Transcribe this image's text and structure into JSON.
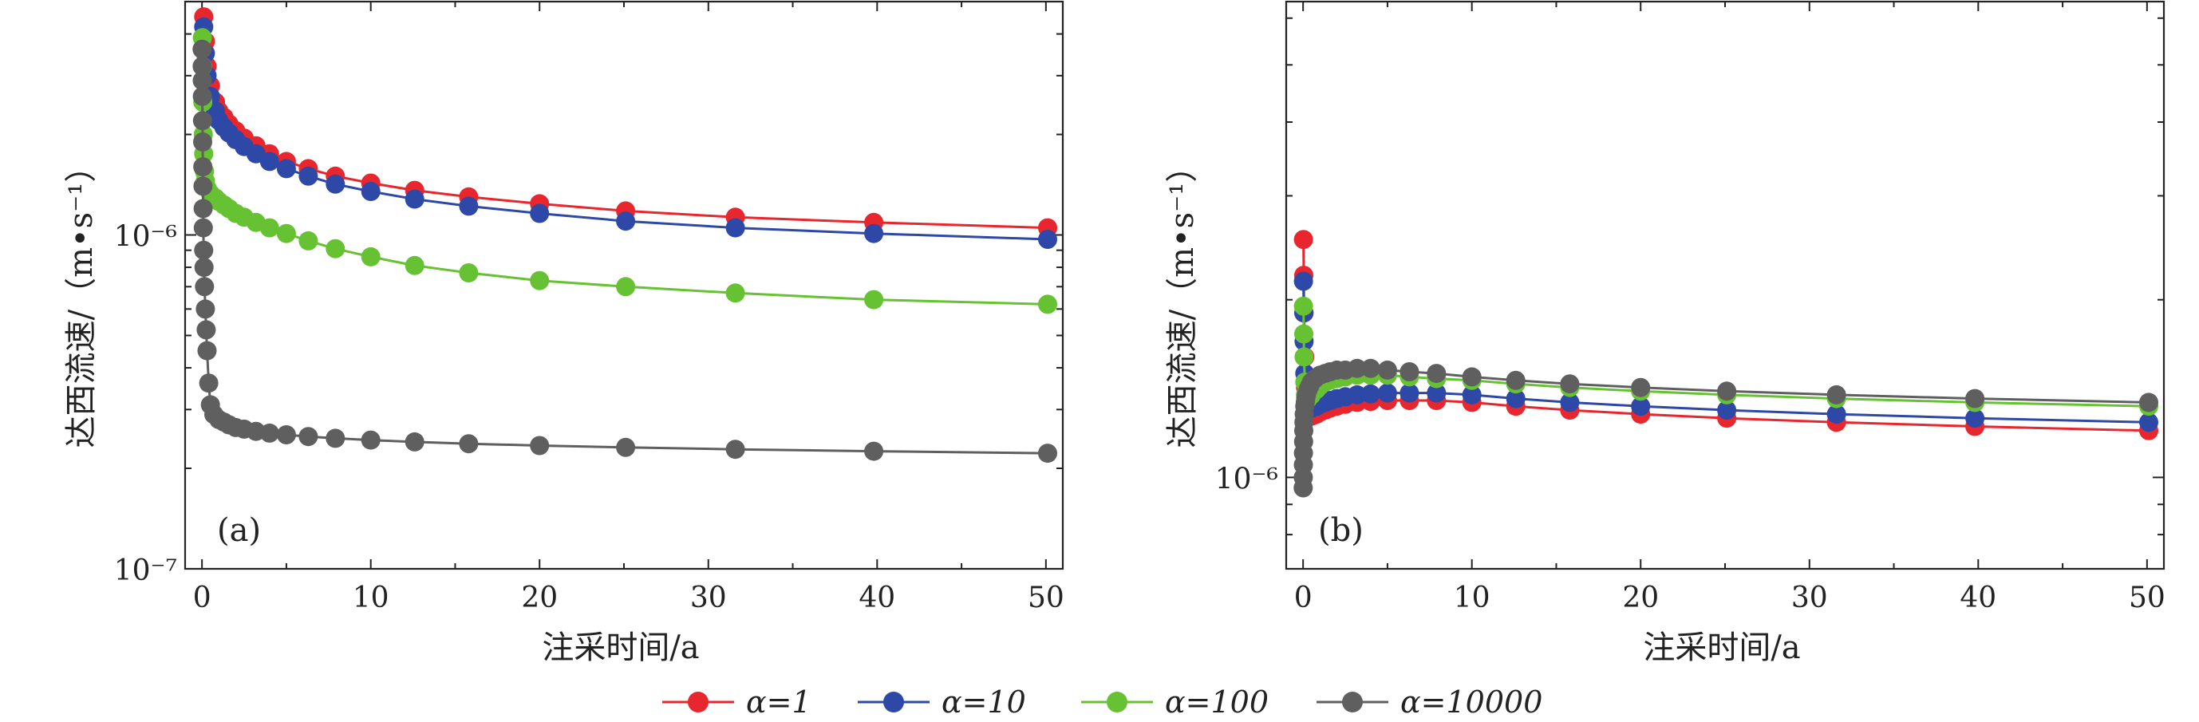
{
  "figure": {
    "legend": [
      {
        "label": "α=1",
        "color": "#e8262d"
      },
      {
        "label": "α=10",
        "color": "#2e48a8"
      },
      {
        "label": "α=100",
        "color": "#66c232"
      },
      {
        "label": "α=10000",
        "color": "#5f5f5f"
      }
    ]
  },
  "chart_data": [
    {
      "type": "line",
      "panel_label": "(a)",
      "xlabel": "注采时间/a",
      "ylabel": "达西流速/（m•s⁻¹）",
      "xlim": [
        -1,
        51
      ],
      "ylim": [
        1e-07,
        5e-06
      ],
      "yscale": "log",
      "xticks": [
        "0",
        "10",
        "20",
        "30",
        "40",
        "50"
      ],
      "yticks": [
        {
          "value": 1e-06,
          "label": "10⁻⁶"
        },
        {
          "value": 1e-07,
          "label": "10⁻⁷"
        }
      ],
      "series": [
        {
          "name": "α=1",
          "color": "#e8262d",
          "x": [
            0.1,
            0.2,
            0.3,
            0.5,
            0.8,
            1.0,
            1.3,
            1.6,
            2.0,
            2.5,
            3.2,
            4.0,
            5.0,
            6.3,
            7.9,
            10.0,
            12.6,
            15.8,
            20.0,
            25.1,
            31.6,
            39.8,
            50.1
          ],
          "y": [
            4.5e-06,
            3.8e-06,
            3.2e-06,
            2.8e-06,
            2.5e-06,
            2.35e-06,
            2.25e-06,
            2.15e-06,
            2.05e-06,
            1.95e-06,
            1.85e-06,
            1.75e-06,
            1.66e-06,
            1.58e-06,
            1.5e-06,
            1.43e-06,
            1.36e-06,
            1.3e-06,
            1.24e-06,
            1.18e-06,
            1.13e-06,
            1.09e-06,
            1.05e-06
          ]
        },
        {
          "name": "α=10",
          "color": "#2e48a8",
          "x": [
            0.1,
            0.2,
            0.3,
            0.5,
            0.8,
            1.0,
            1.3,
            1.6,
            2.0,
            2.5,
            3.2,
            4.0,
            5.0,
            6.3,
            7.9,
            10.0,
            12.6,
            15.8,
            20.0,
            25.1,
            31.6,
            39.8,
            50.1
          ],
          "y": [
            4.2e-06,
            3.5e-06,
            3e-06,
            2.6e-06,
            2.35e-06,
            2.2e-06,
            2.1e-06,
            2.02e-06,
            1.93e-06,
            1.84e-06,
            1.75e-06,
            1.66e-06,
            1.58e-06,
            1.5e-06,
            1.42e-06,
            1.35e-06,
            1.28e-06,
            1.22e-06,
            1.16e-06,
            1.1e-06,
            1.05e-06,
            1.01e-06,
            9.7e-07
          ]
        },
        {
          "name": "α=100",
          "color": "#66c232",
          "x": [
            0.02,
            0.03,
            0.05,
            0.08,
            0.1,
            0.15,
            0.2,
            0.3,
            0.5,
            0.8,
            1.0,
            1.3,
            1.6,
            2.0,
            2.5,
            3.2,
            4.0,
            5.0,
            6.3,
            7.9,
            10.0,
            12.6,
            15.8,
            20.0,
            25.1,
            31.6,
            39.8,
            50.1
          ],
          "y": [
            3.9e-06,
            3.2e-06,
            2.5e-06,
            2e-06,
            1.75e-06,
            1.55e-06,
            1.45e-06,
            1.38e-06,
            1.33e-06,
            1.29e-06,
            1.26e-06,
            1.23e-06,
            1.2e-06,
            1.16e-06,
            1.13e-06,
            1.09e-06,
            1.05e-06,
            1.01e-06,
            9.6e-07,
            9.1e-07,
            8.6e-07,
            8.1e-07,
            7.7e-07,
            7.3e-07,
            7e-07,
            6.7e-07,
            6.4e-07,
            6.2e-07
          ]
        },
        {
          "name": "α=10000",
          "color": "#5f5f5f",
          "x": [
            0.005,
            0.01,
            0.015,
            0.02,
            0.03,
            0.04,
            0.05,
            0.06,
            0.07,
            0.08,
            0.1,
            0.12,
            0.15,
            0.2,
            0.25,
            0.3,
            0.4,
            0.5,
            0.7,
            1.0,
            1.3,
            1.6,
            2.0,
            2.5,
            3.2,
            4.0,
            5.0,
            6.3,
            7.9,
            10.0,
            12.6,
            15.8,
            20.0,
            25.1,
            31.6,
            39.8,
            50.1
          ],
          "y": [
            3.6e-06,
            3.2e-06,
            2.9e-06,
            2.6e-06,
            2.2e-06,
            1.9e-06,
            1.6e-06,
            1.4e-06,
            1.2e-06,
            1.05e-06,
            9e-07,
            8e-07,
            7e-07,
            6e-07,
            5.2e-07,
            4.5e-07,
            3.6e-07,
            3.1e-07,
            2.9e-07,
            2.8e-07,
            2.75e-07,
            2.7e-07,
            2.65e-07,
            2.62e-07,
            2.58e-07,
            2.55e-07,
            2.52e-07,
            2.49e-07,
            2.46e-07,
            2.43e-07,
            2.4e-07,
            2.37e-07,
            2.34e-07,
            2.31e-07,
            2.28e-07,
            2.25e-07,
            2.22e-07
          ]
        }
      ]
    },
    {
      "type": "line",
      "panel_label": "(b)",
      "xlabel": "注采时间/a",
      "ylabel": "达西流速/（m•s⁻¹）",
      "xlim": [
        -1,
        51
      ],
      "ylim": [
        7e-07,
        6.4e-06
      ],
      "yscale": "log",
      "xticks": [
        "0",
        "10",
        "20",
        "30",
        "40",
        "50"
      ],
      "yticks": [
        {
          "value": 1e-06,
          "label": "10⁻⁶"
        }
      ],
      "series": [
        {
          "name": "α=1",
          "color": "#e8262d",
          "x": [
            0.02,
            0.04,
            0.06,
            0.1,
            0.15,
            0.2,
            0.3,
            0.5,
            0.8,
            1.0,
            1.3,
            1.6,
            2.0,
            2.5,
            3.2,
            4.0,
            5.0,
            6.3,
            7.9,
            10.0,
            12.6,
            15.8,
            20.0,
            25.1,
            31.6,
            39.8,
            50.1
          ],
          "y": [
            2.53e-06,
            2.2e-06,
            1.9e-06,
            1.6e-06,
            1.42e-06,
            1.33e-06,
            1.28e-06,
            1.27e-06,
            1.28e-06,
            1.29e-06,
            1.3e-06,
            1.31e-06,
            1.32e-06,
            1.33e-06,
            1.34e-06,
            1.345e-06,
            1.35e-06,
            1.35e-06,
            1.35e-06,
            1.34e-06,
            1.32e-06,
            1.3e-06,
            1.28e-06,
            1.26e-06,
            1.24e-06,
            1.22e-06,
            1.2e-06
          ]
        },
        {
          "name": "α=10",
          "color": "#2e48a8",
          "x": [
            0.02,
            0.04,
            0.06,
            0.1,
            0.15,
            0.2,
            0.3,
            0.5,
            0.8,
            1.0,
            1.3,
            1.6,
            2.0,
            2.5,
            3.2,
            4.0,
            5.0,
            6.3,
            7.9,
            10.0,
            12.6,
            15.8,
            20.0,
            25.1,
            31.6,
            39.8,
            50.1
          ],
          "y": [
            2.15e-06,
            1.9e-06,
            1.7e-06,
            1.5e-06,
            1.38e-06,
            1.33e-06,
            1.31e-06,
            1.31e-06,
            1.32e-06,
            1.33e-06,
            1.34e-06,
            1.35e-06,
            1.36e-06,
            1.37e-06,
            1.38e-06,
            1.385e-06,
            1.39e-06,
            1.39e-06,
            1.39e-06,
            1.38e-06,
            1.36e-06,
            1.34e-06,
            1.32e-06,
            1.3e-06,
            1.28e-06,
            1.26e-06,
            1.24e-06
          ]
        },
        {
          "name": "α=100",
          "color": "#66c232",
          "x": [
            0.02,
            0.04,
            0.06,
            0.1,
            0.15,
            0.2,
            0.3,
            0.5,
            0.8,
            1.0,
            1.3,
            1.6,
            2.0,
            2.5,
            3.2,
            4.0,
            5.0,
            6.3,
            7.9,
            10.0,
            12.6,
            15.8,
            20.0,
            25.1,
            31.6,
            39.8,
            50.1
          ],
          "y": [
            1.95e-06,
            1.75e-06,
            1.6e-06,
            1.45e-06,
            1.38e-06,
            1.36e-06,
            1.36e-06,
            1.38e-06,
            1.41e-06,
            1.43e-06,
            1.45e-06,
            1.46e-06,
            1.47e-06,
            1.48e-06,
            1.49e-06,
            1.49e-06,
            1.49e-06,
            1.48e-06,
            1.47e-06,
            1.46e-06,
            1.44e-06,
            1.42e-06,
            1.4e-06,
            1.38e-06,
            1.36e-06,
            1.34e-06,
            1.32e-06
          ]
        },
        {
          "name": "α=10000",
          "color": "#5f5f5f",
          "x": [
            0.005,
            0.01,
            0.015,
            0.02,
            0.03,
            0.04,
            0.05,
            0.07,
            0.1,
            0.13,
            0.16,
            0.2,
            0.3,
            0.4,
            0.5,
            0.7,
            1.0,
            1.3,
            1.6,
            2.0,
            2.5,
            3.2,
            4.0,
            5.0,
            6.3,
            7.9,
            10.0,
            12.6,
            15.8,
            20.0,
            25.1,
            31.6,
            39.8,
            50.1
          ],
          "y": [
            9.6e-07,
            1e-06,
            1.05e-06,
            1.1e-06,
            1.15e-06,
            1.2e-06,
            1.24e-06,
            1.28e-06,
            1.32e-06,
            1.34e-06,
            1.36e-06,
            1.38e-06,
            1.41e-06,
            1.43e-06,
            1.45e-06,
            1.47e-06,
            1.49e-06,
            1.5e-06,
            1.51e-06,
            1.52e-06,
            1.52e-06,
            1.53e-06,
            1.53e-06,
            1.52e-06,
            1.51e-06,
            1.5e-06,
            1.48e-06,
            1.46e-06,
            1.44e-06,
            1.42e-06,
            1.4e-06,
            1.38e-06,
            1.36e-06,
            1.34e-06
          ]
        }
      ]
    }
  ]
}
